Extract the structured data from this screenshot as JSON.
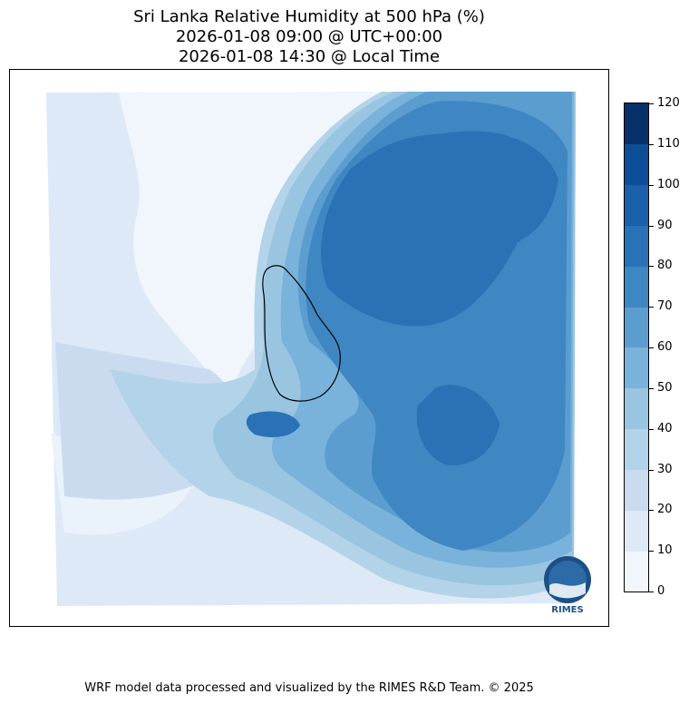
{
  "title": {
    "line1": "Sri Lanka Relative Humidity at 500 hPa (%)",
    "line2": "2026-01-08 09:00 @ UTC+00:00",
    "line3": "2026-01-08 14:30 @ Local Time"
  },
  "colorbar": {
    "levels": [
      "0",
      "10",
      "20",
      "30",
      "40",
      "50",
      "60",
      "70",
      "80",
      "90",
      "100",
      "110",
      "120"
    ],
    "colors": [
      "#f0f6fc",
      "#dde9f6",
      "#cadbef",
      "#b3d3e8",
      "#99c5e1",
      "#79b2da",
      "#5c9dd0",
      "#3f87c3",
      "#2a72b5",
      "#1a60aa",
      "#0c4f98",
      "#08306b"
    ]
  },
  "logo": {
    "text": "RIMES"
  },
  "footer": "WRF model data processed and visualized by the RIMES R&D Team. © 2025"
}
